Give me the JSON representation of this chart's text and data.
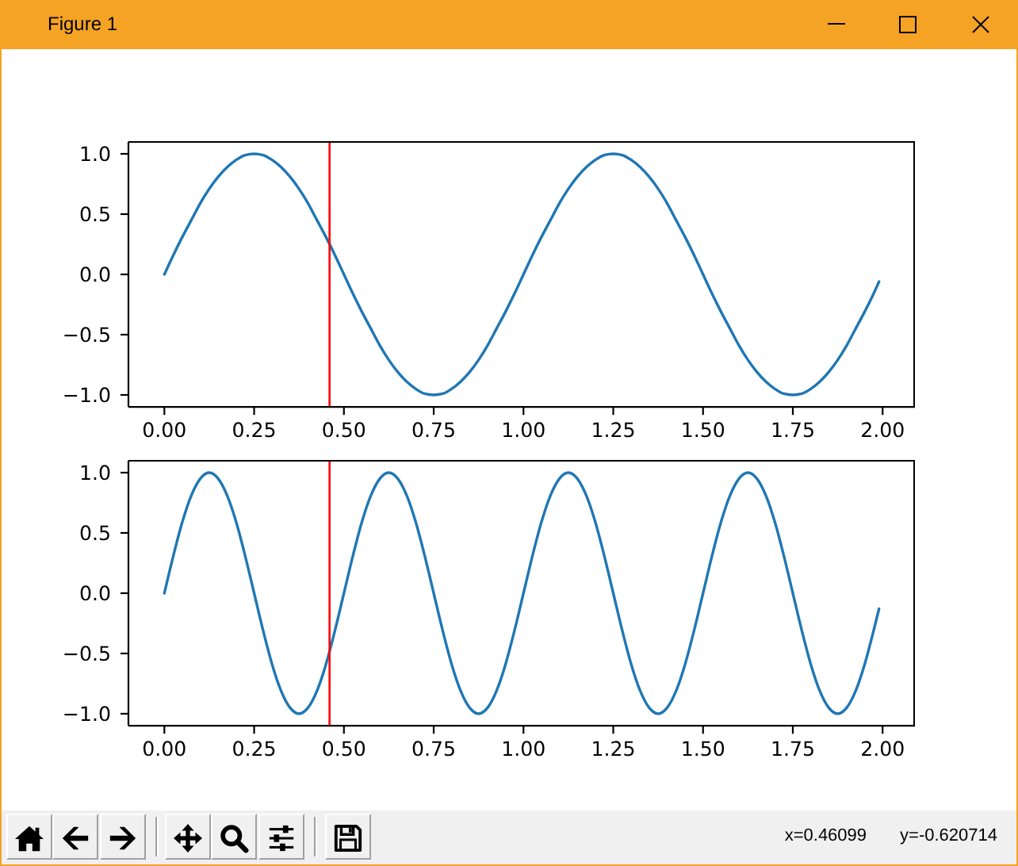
{
  "chart_data": [
    {
      "type": "line",
      "annotations": [
        "Figure 1"
      ],
      "color": "#1f77b4",
      "x": [
        0,
        0.025,
        0.05,
        0.075,
        0.1,
        0.125,
        0.15,
        0.175,
        0.2,
        0.225,
        0.25,
        0.275,
        0.3,
        0.325,
        0.35,
        0.375,
        0.4,
        0.425,
        0.45,
        0.475,
        0.5,
        0.525,
        0.55,
        0.575,
        0.6,
        0.625,
        0.65,
        0.675,
        0.7,
        0.725,
        0.75,
        0.775,
        0.8,
        0.825,
        0.85,
        0.875,
        0.9,
        0.925,
        0.95,
        0.975,
        1,
        1.025,
        1.05,
        1.075,
        1.1,
        1.125,
        1.15,
        1.175,
        1.2,
        1.225,
        1.25,
        1.275,
        1.3,
        1.325,
        1.35,
        1.375,
        1.4,
        1.425,
        1.45,
        1.475,
        1.5,
        1.525,
        1.55,
        1.575,
        1.6,
        1.625,
        1.65,
        1.675,
        1.7,
        1.725,
        1.75,
        1.775,
        1.8,
        1.825,
        1.85,
        1.875,
        1.9,
        1.925,
        1.95,
        1.975,
        1.99
      ],
      "values": [
        0,
        0.16,
        0.31,
        0.45,
        0.59,
        0.71,
        0.81,
        0.89,
        0.95,
        0.99,
        1,
        0.99,
        0.95,
        0.89,
        0.81,
        0.71,
        0.59,
        0.45,
        0.31,
        0.16,
        0,
        -0.16,
        -0.31,
        -0.45,
        -0.59,
        -0.71,
        -0.81,
        -0.89,
        -0.95,
        -0.99,
        -1,
        -0.99,
        -0.95,
        -0.89,
        -0.81,
        -0.71,
        -0.59,
        -0.45,
        -0.31,
        -0.16,
        0,
        0.16,
        0.31,
        0.45,
        0.59,
        0.71,
        0.81,
        0.89,
        0.95,
        0.99,
        1,
        0.99,
        0.95,
        0.89,
        0.81,
        0.71,
        0.59,
        0.45,
        0.31,
        0.16,
        0,
        -0.16,
        -0.31,
        -0.45,
        -0.59,
        -0.71,
        -0.81,
        -0.89,
        -0.95,
        -0.99,
        -1,
        -0.99,
        -0.95,
        -0.89,
        -0.81,
        -0.71,
        -0.59,
        -0.45,
        -0.31,
        -0.16,
        -0.06
      ],
      "xlim": [
        -0.1,
        2.09
      ],
      "ylim": [
        -1.1,
        1.1
      ],
      "xticks": [
        {
          "value": 0,
          "label": "0.00"
        },
        0.25,
        {
          "value": 0.5,
          "label": "0.50"
        },
        0.75,
        {
          "value": 1,
          "label": "1.00"
        },
        1.25,
        {
          "value": 1.5,
          "label": "1.50"
        },
        1.75,
        {
          "value": 2,
          "label": "2.00"
        }
      ],
      "yticks": [
        {
          "value": -1,
          "label": "−1.0"
        },
        {
          "value": -0.5,
          "label": "−0.5"
        },
        {
          "value": 0,
          "label": "0.0"
        },
        0.5,
        {
          "value": 1,
          "label": "1.0"
        }
      ],
      "ref_lines": [
        {
          "axis": "x",
          "value": 0.46,
          "color": "#ff0000"
        }
      ]
    },
    {
      "type": "line",
      "annotations": [
        "x=0.46099",
        "y=-0.620714"
      ],
      "color": "#1f77b4",
      "x": [
        0,
        0.025,
        0.05,
        0.075,
        0.1,
        0.125,
        0.15,
        0.175,
        0.2,
        0.225,
        0.25,
        0.275,
        0.3,
        0.325,
        0.35,
        0.375,
        0.4,
        0.425,
        0.45,
        0.475,
        0.5,
        0.525,
        0.55,
        0.575,
        0.6,
        0.625,
        0.65,
        0.675,
        0.7,
        0.725,
        0.75,
        0.775,
        0.8,
        0.825,
        0.85,
        0.875,
        0.9,
        0.925,
        0.95,
        0.975,
        1,
        1.025,
        1.05,
        1.075,
        1.1,
        1.125,
        1.15,
        1.175,
        1.2,
        1.225,
        1.25,
        1.275,
        1.3,
        1.325,
        1.35,
        1.375,
        1.4,
        1.425,
        1.45,
        1.475,
        1.5,
        1.525,
        1.55,
        1.575,
        1.6,
        1.625,
        1.65,
        1.675,
        1.7,
        1.725,
        1.75,
        1.775,
        1.8,
        1.825,
        1.85,
        1.875,
        1.9,
        1.925,
        1.95,
        1.975,
        1.99
      ],
      "values": [
        0,
        0.31,
        0.59,
        0.81,
        0.95,
        1,
        0.95,
        0.81,
        0.59,
        0.31,
        0,
        -0.31,
        -0.59,
        -0.81,
        -0.95,
        -1,
        -0.95,
        -0.81,
        -0.59,
        -0.31,
        0,
        0.31,
        0.59,
        0.81,
        0.95,
        1,
        0.95,
        0.81,
        0.59,
        0.31,
        0,
        -0.31,
        -0.59,
        -0.81,
        -0.95,
        -1,
        -0.95,
        -0.81,
        -0.59,
        -0.31,
        0,
        0.31,
        0.59,
        0.81,
        0.95,
        1,
        0.95,
        0.81,
        0.59,
        0.31,
        0,
        -0.31,
        -0.59,
        -0.81,
        -0.95,
        -1,
        -0.95,
        -0.81,
        -0.59,
        -0.31,
        0,
        0.31,
        0.59,
        0.81,
        0.95,
        1,
        0.95,
        0.81,
        0.59,
        0.31,
        0,
        -0.31,
        -0.59,
        -0.81,
        -0.95,
        -1,
        -0.95,
        -0.81,
        -0.59,
        -0.31,
        -0.13
      ],
      "xlim": [
        -0.1,
        2.09
      ],
      "ylim": [
        -1.1,
        1.1
      ],
      "xticks": [
        {
          "value": 0,
          "label": "0.00"
        },
        0.25,
        {
          "value": 0.5,
          "label": "0.50"
        },
        0.75,
        {
          "value": 1,
          "label": "1.00"
        },
        1.25,
        {
          "value": 1.5,
          "label": "1.50"
        },
        1.75,
        {
          "value": 2,
          "label": "2.00"
        }
      ],
      "yticks": [
        {
          "value": -1,
          "label": "−1.0"
        },
        {
          "value": -0.5,
          "label": "−0.5"
        },
        {
          "value": 0,
          "label": "0.0"
        },
        0.5,
        {
          "value": 1,
          "label": "1.0"
        }
      ],
      "ref_lines": [
        {
          "axis": "x",
          "value": 0.46,
          "color": "#ff0000"
        }
      ]
    }
  ]
}
